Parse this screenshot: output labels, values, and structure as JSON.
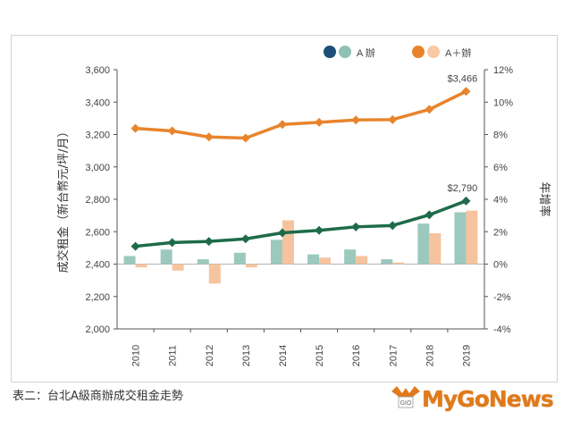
{
  "chart_data": {
    "type": "bar+line",
    "categories": [
      "2010",
      "2011",
      "2012",
      "2013",
      "2014",
      "2015",
      "2016",
      "2017",
      "2018",
      "2019"
    ],
    "line_series": [
      {
        "name": "A＋辦",
        "axis": "left",
        "color": "#e8842c",
        "values": [
          3238,
          3222,
          3185,
          3178,
          3262,
          3275,
          3290,
          3292,
          3355,
          3466
        ]
      },
      {
        "name": "A辦",
        "axis": "left",
        "color": "#1e6b4a",
        "values": [
          2510,
          2533,
          2540,
          2556,
          2593,
          2608,
          2630,
          2638,
          2704,
          2790
        ]
      }
    ],
    "bar_series": [
      {
        "name": "A辦",
        "axis": "right",
        "color": "#9cc9bd",
        "values": [
          0.5,
          0.9,
          0.3,
          0.7,
          1.5,
          0.6,
          0.9,
          0.3,
          2.5,
          3.2
        ]
      },
      {
        "name": "A＋辦",
        "axis": "right",
        "color": "#f5c49e",
        "values": [
          -0.2,
          -0.4,
          -1.2,
          -0.2,
          2.7,
          0.4,
          0.5,
          0.1,
          1.9,
          3.3
        ]
      }
    ],
    "left_axis": {
      "min": 2000,
      "max": 3600,
      "step": 200,
      "title": "成交租金（新台幣元/坪/月）",
      "tick_labels": [
        "2,000",
        "2,200",
        "2,400",
        "2,600",
        "2,800",
        "3,000",
        "3,200",
        "3,400",
        "3,600"
      ]
    },
    "right_axis": {
      "min": -4,
      "max": 12,
      "step": 2,
      "title": "年增率",
      "tick_labels": [
        "-4%",
        "-2%",
        "0%",
        "2%",
        "4%",
        "6%",
        "8%",
        "10%",
        "12%"
      ]
    },
    "annotations": [
      {
        "series": "A＋辦",
        "category": "2019",
        "text": "$3,466"
      },
      {
        "series": "A辦",
        "category": "2019",
        "text": "$2,790"
      }
    ],
    "legend": {
      "placement": "top-right",
      "items": [
        {
          "label": "A 辦",
          "marker_colors": [
            "#1d4f7a",
            "#8fc2b4"
          ]
        },
        {
          "label": "A＋辦",
          "marker_colors": [
            "#e8842c",
            "#f8c9a4"
          ]
        }
      ]
    }
  },
  "caption": "表二：台北A級商辦成交租金走勢",
  "brand": {
    "text": "MyGoNews",
    "logo_letters": "GIO"
  }
}
